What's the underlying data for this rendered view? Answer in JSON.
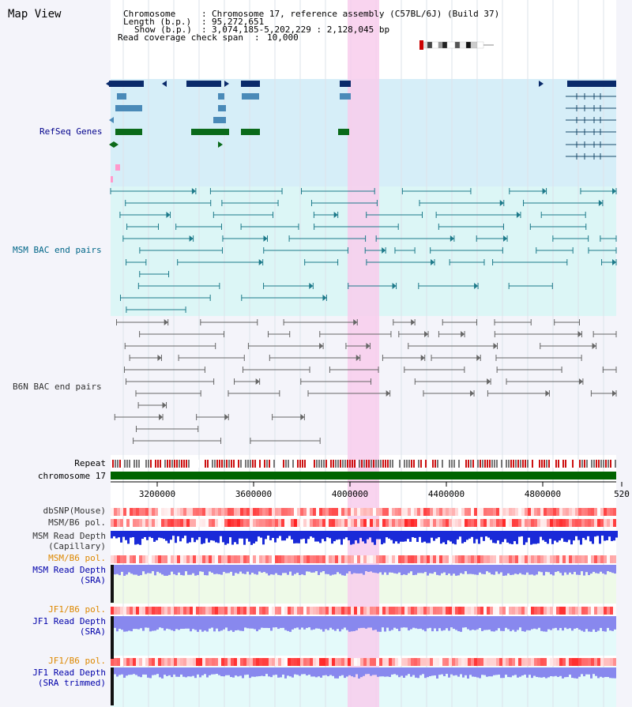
{
  "map": {
    "title": "Map View",
    "info": {
      "chromosome_key": "Chromosome",
      "chromosome_val": "Chromosome 17, reference assembly (C57BL/6J) (Build 37)",
      "length_key": "Length (b.p.)",
      "length_val": "95,272,651",
      "show_key": "Show (b.p.)",
      "show_val": "3,074,185-5,202,229 : 2,128,045 bp",
      "span_key": "Read coverage check span",
      "span_val": "10,000"
    },
    "axis_ticks": [
      "3200000",
      "3600000",
      "4000000",
      "4400000",
      "4800000",
      "520"
    ],
    "tracks": {
      "refseq": "RefSeq Genes",
      "msm_bac": "MSM BAC end pairs",
      "b6n_bac": "B6N BAC end pairs",
      "repeat": "Repeat",
      "chromosome": "chromosome 17",
      "dbsnp": "dbSNP(Mouse)",
      "msm_b6_pol_1": "MSM/B6 pol.",
      "msm_depth_cap_1": "MSM Read Depth",
      "msm_depth_cap_2": "(Capillary)",
      "msm_b6_pol_2": "MSM/B6 pol.",
      "msm_depth_sra_1": "MSM Read Depth",
      "msm_depth_sra_2": "(SRA)",
      "jf1_b6_pol_1": "JF1/B6 pol.",
      "jf1_depth_sra_1": "JF1 Read Depth",
      "jf1_depth_sra_2": "(SRA)",
      "jf1_b6_pol_2": "JF1/B6 pol.",
      "jf1_depth_trim_1": "JF1 Read Depth",
      "jf1_depth_trim_2": "(SRA trimmed)"
    },
    "colors": {
      "refseq_label": "#00008b",
      "msm_label": "#006688",
      "b6n_label": "#333333",
      "orange_label": "#dd8800",
      "blue_label": "#0000aa",
      "highlight": "#f8ccec",
      "gene_dark": "#0a2a6a",
      "gene_green": "#0a6a1a"
    }
  }
}
